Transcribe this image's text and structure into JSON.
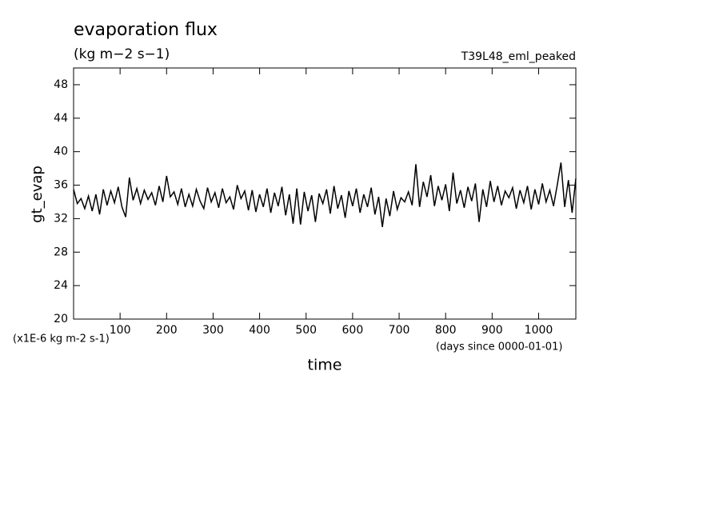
{
  "chart_data": {
    "type": "line",
    "title": "evaporation flux",
    "subtitle": "(kg m−2 s−1)",
    "annotation": "T39L48_eml_peaked",
    "ylabel": "gt_evap",
    "xlabel": "time",
    "y_unit": "(x1E-6 kg m-2 s-1)",
    "x_unit": "(days since 0000-01-01)",
    "color": "#000000",
    "xlim": [
      0,
      1080
    ],
    "ylim": [
      20,
      50
    ],
    "xticks": [
      100,
      200,
      300,
      400,
      500,
      600,
      700,
      800,
      900,
      1000
    ],
    "yticks": [
      20,
      24,
      28,
      32,
      36,
      40,
      44,
      48
    ],
    "x": [
      0,
      8,
      16,
      24,
      32,
      40,
      48,
      56,
      64,
      72,
      80,
      88,
      96,
      104,
      112,
      120,
      128,
      136,
      144,
      152,
      160,
      168,
      176,
      184,
      192,
      200,
      208,
      216,
      224,
      232,
      240,
      248,
      256,
      264,
      272,
      280,
      288,
      296,
      304,
      312,
      320,
      328,
      336,
      344,
      352,
      360,
      368,
      376,
      384,
      392,
      400,
      408,
      416,
      424,
      432,
      440,
      448,
      456,
      464,
      472,
      480,
      488,
      496,
      504,
      512,
      520,
      528,
      536,
      544,
      552,
      560,
      568,
      576,
      584,
      592,
      600,
      608,
      616,
      624,
      632,
      640,
      648,
      656,
      664,
      672,
      680,
      688,
      696,
      704,
      712,
      720,
      728,
      736,
      744,
      752,
      760,
      768,
      776,
      784,
      792,
      800,
      808,
      816,
      824,
      832,
      840,
      848,
      856,
      864,
      872,
      880,
      888,
      896,
      904,
      912,
      920,
      928,
      936,
      944,
      952,
      960,
      968,
      976,
      984,
      992,
      1000,
      1008,
      1016,
      1024,
      1032,
      1040,
      1048,
      1056,
      1064,
      1072,
      1080
    ],
    "values": [
      35.5,
      33.8,
      34.4,
      33.2,
      34.7,
      32.9,
      34.9,
      32.5,
      35.5,
      33.6,
      35.3,
      33.9,
      35.8,
      33.4,
      32.2,
      36.9,
      34.2,
      35.6,
      33.8,
      35.4,
      34.3,
      35.1,
      33.6,
      35.9,
      34.0,
      37.1,
      34.6,
      35.2,
      33.7,
      35.6,
      33.4,
      34.9,
      33.5,
      35.5,
      34.1,
      33.2,
      35.7,
      34.0,
      35.1,
      33.3,
      35.6,
      33.9,
      34.6,
      33.1,
      36.0,
      34.4,
      35.3,
      33.0,
      35.4,
      32.8,
      34.9,
      33.4,
      35.6,
      32.7,
      35.1,
      33.5,
      35.8,
      32.4,
      34.9,
      31.4,
      35.6,
      31.3,
      35.2,
      32.9,
      34.8,
      31.6,
      35.0,
      33.8,
      35.5,
      32.6,
      35.9,
      33.2,
      34.8,
      32.1,
      35.3,
      33.5,
      35.6,
      32.7,
      34.9,
      33.4,
      35.7,
      32.5,
      34.6,
      31.0,
      34.4,
      32.3,
      35.3,
      33.1,
      34.5,
      34.0,
      35.2,
      33.6,
      38.5,
      33.4,
      36.4,
      34.6,
      37.2,
      33.5,
      35.9,
      34.2,
      36.1,
      32.9,
      37.5,
      33.8,
      35.4,
      33.3,
      35.8,
      34.1,
      36.2,
      31.6,
      35.5,
      33.4,
      36.5,
      34.0,
      35.9,
      33.6,
      35.3,
      34.5,
      35.7,
      33.2,
      35.4,
      33.9,
      35.9,
      33.1,
      35.5,
      33.7,
      36.2,
      34.0,
      35.4,
      33.5,
      36.0,
      38.7,
      33.4,
      36.6,
      32.7,
      36.8
    ]
  }
}
